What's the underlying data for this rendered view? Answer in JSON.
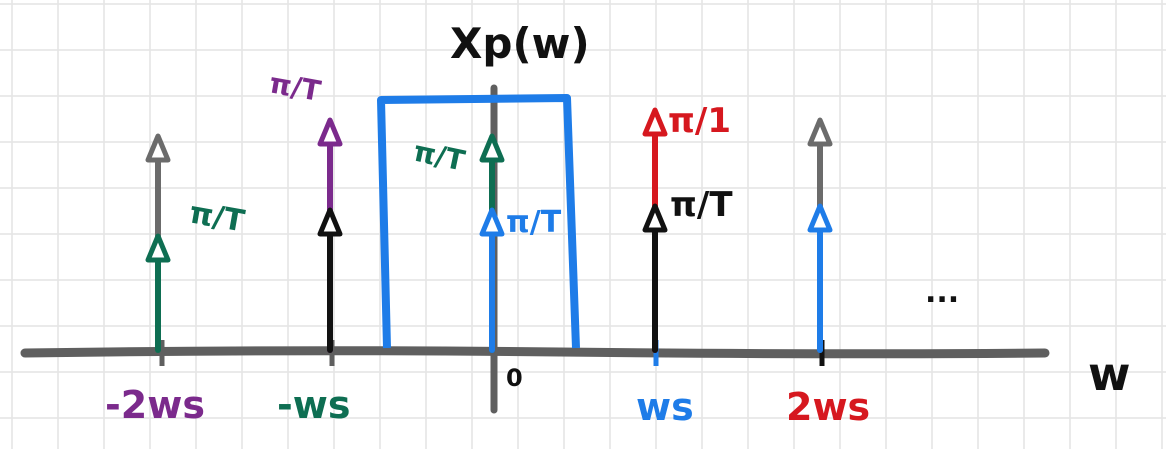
{
  "title": "Xp(w)",
  "axis_variable": "w",
  "origin_label": "0",
  "ellipsis": "...",
  "colors": {
    "grid": "#e4e4e4",
    "axis": "#5f5f5f",
    "green": "#0e6e52",
    "purple": "#7b2a8c",
    "black": "#111111",
    "blue": "#1e7ce8",
    "red": "#d6181f",
    "gray": "#6b6b6b"
  },
  "tick_labels": [
    {
      "text": "-2ws",
      "color": "purple"
    },
    {
      "text": "-ws",
      "color": "green"
    },
    {
      "text": "ws",
      "color": "blue"
    },
    {
      "text": "2ws",
      "color": "red"
    }
  ],
  "impulses": [
    {
      "freq": "-2ws",
      "color": "green",
      "height": 0.57,
      "label": "π/T"
    },
    {
      "freq": "-2ws",
      "color": "gray",
      "height": 1.07,
      "label": ""
    },
    {
      "freq": "-ws",
      "color": "black",
      "height": 0.7,
      "label": ""
    },
    {
      "freq": "-ws",
      "color": "purple",
      "height": 1.15,
      "label": "π/T"
    },
    {
      "freq": "0",
      "color": "blue",
      "height": 0.7,
      "label": "π/T"
    },
    {
      "freq": "0",
      "color": "green",
      "height": 1.07,
      "label": "π/T"
    },
    {
      "freq": "ws",
      "color": "black",
      "height": 0.72,
      "label": "π/T"
    },
    {
      "freq": "ws",
      "color": "red",
      "height": 1.2,
      "label": "π/1"
    },
    {
      "freq": "2ws",
      "color": "blue",
      "height": 0.72,
      "label": ""
    },
    {
      "freq": "2ws",
      "color": "gray",
      "height": 1.15,
      "label": ""
    }
  ],
  "filter": {
    "color": "blue",
    "passband": "-ws/2 to ws/2"
  }
}
